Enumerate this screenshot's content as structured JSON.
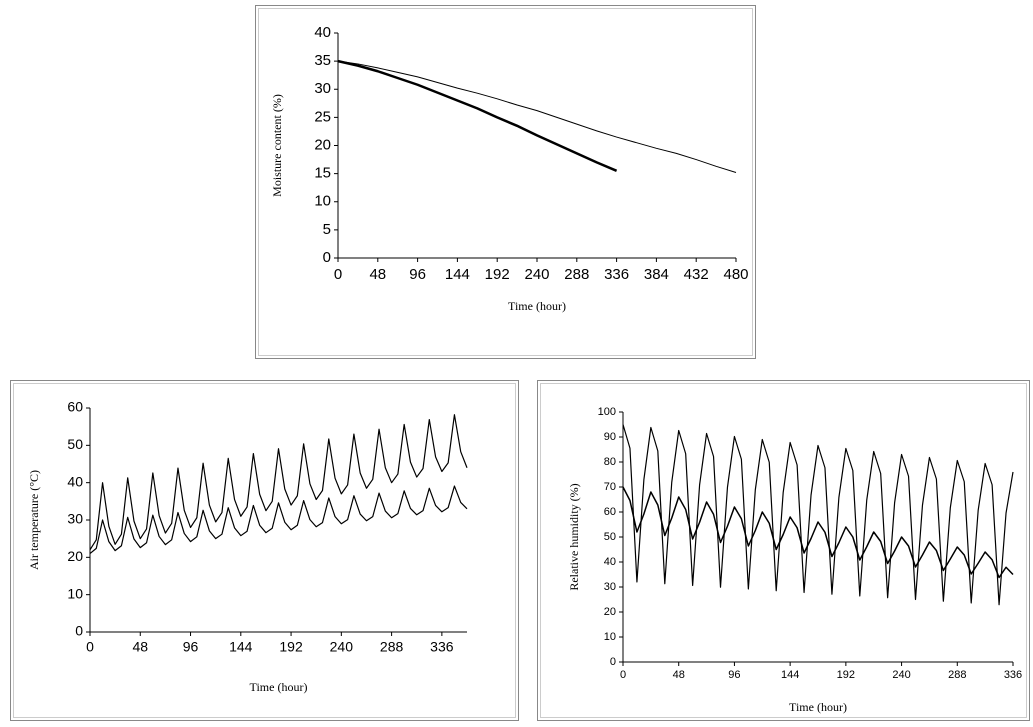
{
  "chart_data": [
    {
      "type": "line",
      "xlabel": "Time (hour)",
      "ylabel": "Moisture content (%)",
      "x": [
        0,
        24,
        48,
        72,
        96,
        120,
        144,
        168,
        192,
        216,
        240,
        264,
        288,
        312,
        336,
        360,
        384,
        408,
        432,
        456,
        480
      ],
      "series": [
        {
          "color": "#000000",
          "values": [
            35,
            34.2,
            33.2,
            32,
            30.8,
            29.4,
            28,
            26.6,
            25,
            23.5,
            21.8,
            20.2,
            18.6,
            17,
            15.5,
            null,
            null,
            null,
            null,
            null,
            null
          ]
        },
        {
          "color": "#000000",
          "values": [
            35,
            34.5,
            33.8,
            33,
            32.2,
            31.2,
            30.2,
            29.3,
            28.3,
            27.2,
            26.2,
            25,
            23.8,
            22.6,
            21.5,
            20.5,
            19.5,
            18.6,
            17.5,
            16.3,
            15.2
          ]
        }
      ],
      "xlim": [
        0,
        480
      ],
      "xticks": [
        0,
        48,
        96,
        144,
        192,
        240,
        288,
        336,
        384,
        432,
        480
      ],
      "ylim": [
        0,
        40
      ],
      "yticks": [
        0,
        5,
        10,
        15,
        20,
        25,
        30,
        35,
        40
      ]
    },
    {
      "type": "line",
      "xlabel": "Time (hour)",
      "ylabel": "Air temperature (°C)",
      "x": [
        0,
        6,
        12,
        18,
        24,
        30,
        36,
        42,
        48,
        54,
        60,
        66,
        72,
        78,
        84,
        90,
        96,
        102,
        108,
        114,
        120,
        126,
        132,
        138,
        144,
        150,
        156,
        162,
        168,
        174,
        180,
        186,
        192,
        198,
        204,
        210,
        216,
        222,
        228,
        234,
        240,
        246,
        252,
        258,
        264,
        270,
        276,
        282,
        288,
        294,
        300,
        306,
        312,
        318,
        324,
        330,
        336,
        342,
        348,
        354,
        360
      ],
      "series": [
        {
          "color": "#000000",
          "values": [
            22,
            24.7,
            40,
            28.3,
            23.5,
            26.2,
            41.3,
            29.7,
            25,
            27.6,
            42.6,
            31.2,
            26.5,
            29.1,
            43.9,
            32.6,
            28,
            30.6,
            45.2,
            34,
            29.5,
            32,
            46.5,
            35.5,
            31,
            33.5,
            47.8,
            36.9,
            32.5,
            35,
            49.1,
            38.3,
            34,
            36.5,
            50.4,
            39.7,
            35.5,
            37.9,
            51.7,
            41.2,
            37,
            39.4,
            53,
            42.6,
            38.5,
            40.9,
            54.3,
            44,
            40,
            42.3,
            55.6,
            45.5,
            41.5,
            43.8,
            56.9,
            46.9,
            43,
            45.3,
            58.2,
            48.3,
            44
          ]
        },
        {
          "color": "#000000",
          "values": [
            21,
            22.4,
            30,
            24.2,
            21.8,
            23.1,
            30.7,
            24.9,
            22.6,
            23.9,
            31.3,
            25.6,
            23.4,
            24.7,
            32,
            26.4,
            24.2,
            25.5,
            32.6,
            27.1,
            25,
            26.2,
            33.3,
            27.9,
            25.8,
            27,
            33.9,
            28.6,
            26.6,
            27.8,
            34.6,
            29.4,
            27.4,
            28.6,
            35.2,
            30.1,
            28.2,
            29.3,
            35.9,
            30.9,
            29,
            30.1,
            36.5,
            31.6,
            29.8,
            30.9,
            37.2,
            32.4,
            30.6,
            31.7,
            37.8,
            33.1,
            31.4,
            32.5,
            38.5,
            33.9,
            32.2,
            33.3,
            39.1,
            34.7,
            33
          ]
        }
      ],
      "xlim": [
        0,
        360
      ],
      "xticks": [
        0,
        48,
        96,
        144,
        192,
        240,
        288,
        336
      ],
      "ylim": [
        0,
        60
      ],
      "yticks": [
        0,
        10,
        20,
        30,
        40,
        50,
        60
      ]
    },
    {
      "type": "line",
      "xlabel": "Time (hour)",
      "ylabel": "Relative humidity (%)",
      "x": [
        0,
        6,
        12,
        18,
        24,
        30,
        36,
        42,
        48,
        54,
        60,
        66,
        72,
        78,
        84,
        90,
        96,
        102,
        108,
        114,
        120,
        126,
        132,
        138,
        144,
        150,
        156,
        162,
        168,
        174,
        180,
        186,
        192,
        198,
        204,
        210,
        216,
        222,
        228,
        234,
        240,
        246,
        252,
        258,
        264,
        270,
        276,
        282,
        288,
        294,
        300,
        306,
        312,
        318,
        324,
        330,
        336
      ],
      "series": [
        {
          "color": "#000000",
          "values": [
            95,
            85.5,
            32,
            73,
            93.8,
            84.4,
            31.3,
            71.9,
            92.6,
            83.3,
            30.6,
            70.9,
            91.4,
            82.2,
            29.9,
            69.9,
            90.2,
            81.1,
            29.2,
            68.9,
            89,
            79.9,
            28.5,
            67.8,
            87.8,
            78.8,
            27.8,
            66.8,
            86.6,
            77.7,
            27.1,
            65.8,
            85.4,
            76.6,
            26.4,
            64.8,
            84.2,
            75.4,
            25.7,
            63.7,
            83,
            74.3,
            25,
            62.7,
            81.8,
            73.2,
            24.3,
            61.7,
            80.6,
            72.1,
            23.6,
            60.7,
            79.4,
            70.9,
            22.9,
            59.6,
            76
          ]
        },
        {
          "color": "#000000",
          "values": [
            70,
            64.6,
            52,
            59.2,
            68,
            62.8,
            50.6,
            57.6,
            66,
            61,
            49.2,
            55.9,
            64,
            59.1,
            47.8,
            54.3,
            62,
            57.3,
            46.4,
            52.6,
            60,
            55.5,
            45,
            51,
            58,
            53.7,
            43.6,
            49.4,
            56,
            51.9,
            42.2,
            47.7,
            54,
            50,
            40.8,
            46.1,
            52,
            48.2,
            39.4,
            44.4,
            50,
            46.4,
            38,
            42.8,
            48,
            44.6,
            36.6,
            41.2,
            46,
            42.8,
            35.2,
            39.5,
            44,
            40.9,
            33.8,
            37.9,
            35
          ]
        }
      ],
      "xlim": [
        0,
        336
      ],
      "xticks": [
        0,
        48,
        96,
        144,
        192,
        240,
        288,
        336
      ],
      "ylim": [
        0,
        100
      ],
      "yticks": [
        0,
        10,
        20,
        30,
        40,
        50,
        60,
        70,
        80,
        90,
        100
      ]
    }
  ]
}
